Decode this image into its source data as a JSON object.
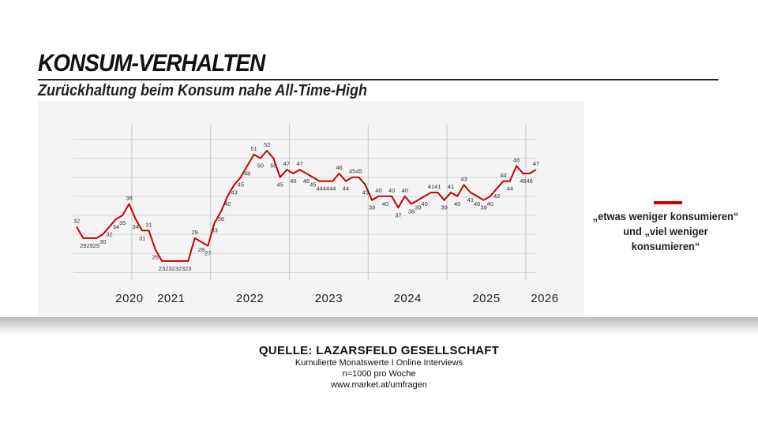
{
  "header": {
    "title": "KONSUM-VERHALTEN",
    "subtitle": "Zurückhaltung beim Konsum nahe All-Time-High"
  },
  "legend": {
    "line1": "„etwas weniger konsumieren“",
    "line2": "und „viel weniger konsumieren“",
    "color": "#c40000"
  },
  "source": {
    "title": "QUELLE: LAZARSFELD GESELLSCHAFT",
    "lines": [
      "Kumulierte Monatswerte I Online Interviews",
      "n=1000 pro Woche",
      "www.market.at/umfragen"
    ]
  },
  "chart_data": {
    "type": "line",
    "series_name": "„etwas weniger konsumieren“ und „viel weniger konsumieren“",
    "x_start": 2019.9,
    "x_step": 0.0833,
    "ylim": [
      18,
      58
    ],
    "x_tick_labels": [
      "2020",
      "2021",
      "2022",
      "2023",
      "2024",
      "2025",
      "2026"
    ],
    "year_dividers": [
      2020.6,
      2021.6,
      2022.6,
      2023.6,
      2024.6,
      2025.6
    ],
    "values": [
      32,
      29,
      29,
      29,
      30,
      32,
      34,
      35,
      38,
      34,
      31,
      31,
      26,
      23,
      23,
      23,
      23,
      23,
      29,
      28,
      27,
      33,
      36,
      40,
      43,
      45,
      48,
      51,
      50,
      52,
      50,
      45,
      47,
      46,
      47,
      46,
      45,
      44,
      44,
      44,
      46,
      44,
      45,
      45,
      43,
      39,
      40,
      40,
      40,
      37,
      40,
      38,
      39,
      40,
      41,
      41,
      39,
      41,
      40,
      43,
      41,
      40,
      39,
      40,
      42,
      44,
      44,
      48,
      46,
      46,
      47
    ],
    "data_labels": [
      "32",
      "29",
      "29",
      "29",
      "30",
      "32",
      "34",
      "35",
      "38",
      "34",
      "31",
      "31",
      "26",
      "23",
      "23",
      "23",
      "23",
      "23",
      "29",
      "28",
      "27",
      "33",
      "36",
      "40",
      "43",
      "45",
      "48",
      "51",
      "50",
      "52",
      "50",
      "45",
      "47",
      "46",
      "47",
      "46",
      "45",
      "44",
      "44",
      "44",
      "46",
      "44",
      "45",
      "45",
      "43",
      "39",
      "40",
      "40",
      "40",
      "37",
      "40",
      "38",
      "39",
      "40",
      "41",
      "41",
      "39",
      "41",
      "40",
      "43",
      "41",
      "40",
      "39",
      "40",
      "42",
      "44",
      "44",
      "48",
      "46",
      "46",
      "47"
    ],
    "gridlines": true
  }
}
